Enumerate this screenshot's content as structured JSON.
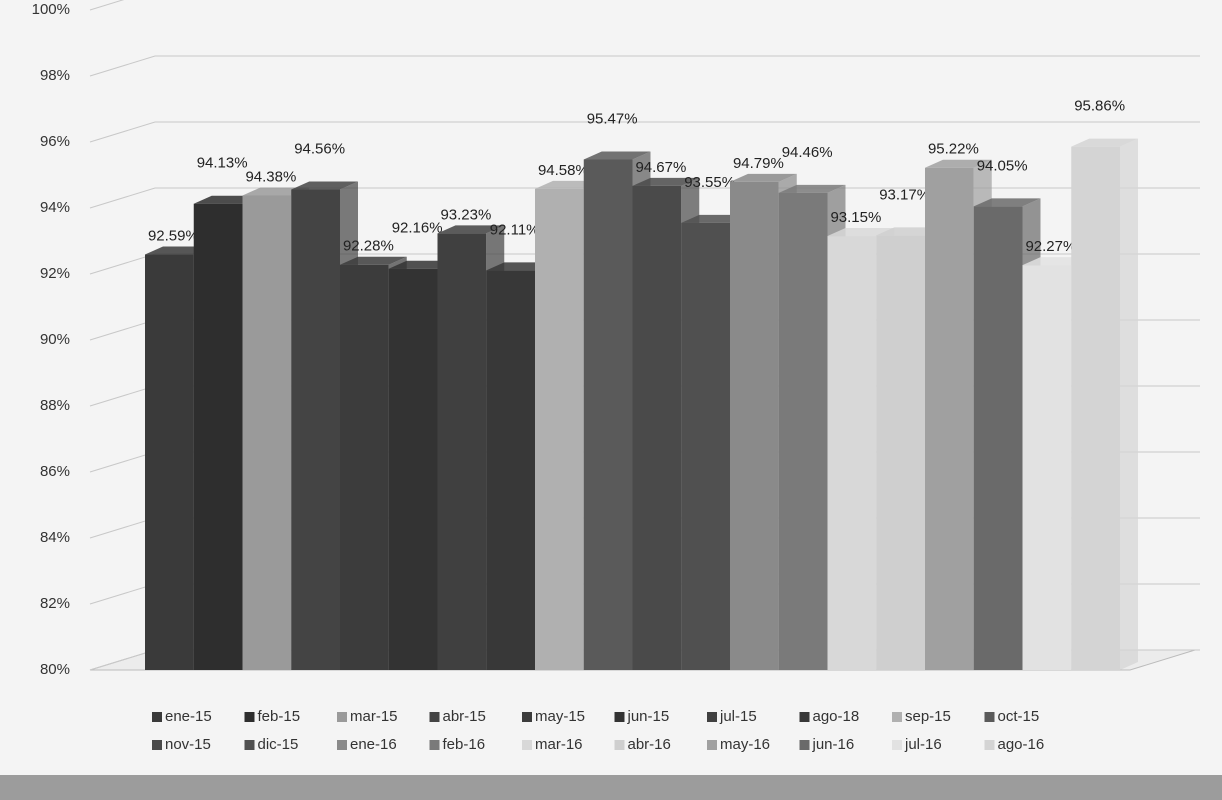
{
  "chart_data": {
    "type": "bar3d",
    "categories": [
      "ene-15",
      "feb-15",
      "mar-15",
      "abr-15",
      "may-15",
      "jun-15",
      "jul-15",
      "ago-18",
      "sep-15",
      "oct-15",
      "nov-15",
      "dic-15",
      "ene-16",
      "feb-16",
      "mar-16",
      "abr-16",
      "may-16",
      "jun-16",
      "jul-16",
      "ago-16"
    ],
    "values": [
      92.59,
      94.13,
      94.38,
      94.56,
      92.28,
      92.16,
      93.23,
      92.11,
      94.58,
      95.47,
      94.67,
      93.55,
      94.79,
      94.46,
      93.15,
      93.17,
      95.22,
      94.05,
      92.27,
      95.86
    ],
    "value_labels": [
      "92.59%",
      "94.13%",
      "94.38%",
      "94.56%",
      "92.28%",
      "92.16%",
      "93.23%",
      "92.11%",
      "94.58%",
      "95.47%",
      "94.67%",
      "93.55%",
      "94.79%",
      "94.46%",
      "93.15%",
      "93.17%",
      "95.22%",
      "94.05%",
      "92.27%",
      "95.86%"
    ],
    "colors": [
      "#3a3a3a",
      "#2e2e2e",
      "#9a9a9a",
      "#444444",
      "#3c3c3c",
      "#333333",
      "#404040",
      "#383838",
      "#b0b0b0",
      "#5a5a5a",
      "#4a4a4a",
      "#505050",
      "#8a8a8a",
      "#7a7a7a",
      "#d8d8d8",
      "#cfcfcf",
      "#a0a0a0",
      "#6a6a6a",
      "#e2e2e2",
      "#d4d4d4"
    ],
    "ylim": [
      80,
      100
    ],
    "yticks": [
      {
        "value": 80,
        "label": "80%"
      },
      {
        "value": 82,
        "label": "82%"
      },
      {
        "value": 84,
        "label": "84%"
      },
      {
        "value": 86,
        "label": "86%"
      },
      {
        "value": 88,
        "label": "88%"
      },
      {
        "value": 90,
        "label": "90%"
      },
      {
        "value": 92,
        "label": "92%"
      },
      {
        "value": 94,
        "label": "94%"
      },
      {
        "value": 96,
        "label": "96%"
      },
      {
        "value": 98,
        "label": "98%"
      },
      {
        "value": 100,
        "label": "100%"
      }
    ],
    "grid": true
  }
}
